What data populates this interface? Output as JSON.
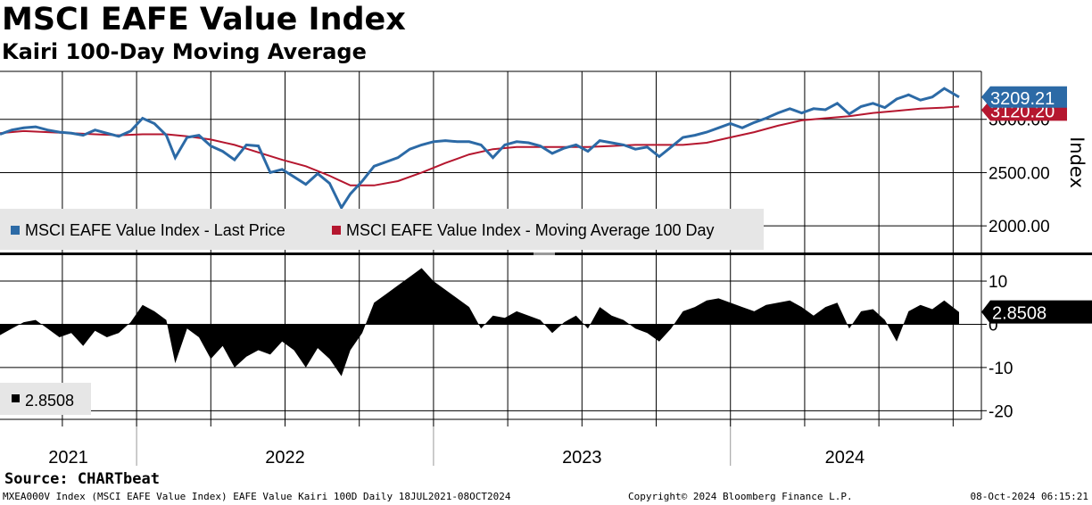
{
  "header": {
    "title": "MSCI EAFE Value Index",
    "subtitle": "Kairi 100-Day Moving Average"
  },
  "footer": {
    "source": "Source: CHARTbeat",
    "ticker_info": "MXEA000V Index (MSCI EAFE Value Index) EAFE Value Kairi 100D  Daily 18JUL2021-08OCT2024",
    "copyright": "Copyright© 2024 Bloomberg Finance L.P.",
    "timestamp": "08-Oct-2024 06:15:21"
  },
  "colors": {
    "price": "#2c6aa6",
    "moving_average": "#b5172f",
    "kairi": "#000000",
    "grid": "#000000",
    "legend_bg": "#e6e6e6"
  },
  "chart_data": [
    {
      "type": "line",
      "panel": "upper",
      "ylabel": "Index",
      "ylim": [
        1750,
        3450
      ],
      "yticks": [
        2000,
        2500,
        3000
      ],
      "ytick_labels": [
        "2000.00",
        "2500.00",
        "3000.00"
      ],
      "x_range": [
        "2021-07-18",
        "2024-10-08"
      ],
      "x_labels": [
        "2021",
        "2022",
        "2023",
        "2024"
      ],
      "legend": [
        "MSCI EAFE Value Index - Last Price",
        "MSCI EAFE Value Index - Moving Average 100 Day"
      ],
      "last_value_labels": [
        "3209.21",
        "3120.20"
      ],
      "series": [
        {
          "name": "MSCI EAFE Value Index - Last Price",
          "x": [
            2021.54,
            2021.58,
            2021.62,
            2021.66,
            2021.7,
            2021.74,
            2021.78,
            2021.82,
            2021.86,
            2021.9,
            2021.94,
            2021.98,
            2022.02,
            2022.06,
            2022.1,
            2022.13,
            2022.17,
            2022.21,
            2022.25,
            2022.29,
            2022.33,
            2022.37,
            2022.41,
            2022.45,
            2022.49,
            2022.53,
            2022.57,
            2022.61,
            2022.65,
            2022.69,
            2022.72,
            2022.76,
            2022.8,
            2022.84,
            2022.88,
            2022.92,
            2022.96,
            2023.0,
            2023.04,
            2023.08,
            2023.12,
            2023.16,
            2023.2,
            2023.24,
            2023.28,
            2023.32,
            2023.36,
            2023.4,
            2023.44,
            2023.48,
            2023.52,
            2023.56,
            2023.6,
            2023.64,
            2023.68,
            2023.72,
            2023.76,
            2023.8,
            2023.84,
            2023.88,
            2023.92,
            2023.96,
            2024.0,
            2024.04,
            2024.08,
            2024.12,
            2024.16,
            2024.2,
            2024.24,
            2024.28,
            2024.32,
            2024.36,
            2024.4,
            2024.44,
            2024.48,
            2024.52,
            2024.56,
            2024.6,
            2024.64,
            2024.68,
            2024.72,
            2024.77
          ],
          "values": [
            2860,
            2900,
            2920,
            2930,
            2900,
            2880,
            2870,
            2850,
            2900,
            2870,
            2840,
            2890,
            3010,
            2960,
            2850,
            2640,
            2830,
            2850,
            2750,
            2700,
            2620,
            2760,
            2750,
            2500,
            2530,
            2460,
            2390,
            2490,
            2400,
            2170,
            2300,
            2420,
            2560,
            2600,
            2640,
            2720,
            2760,
            2790,
            2800,
            2790,
            2790,
            2760,
            2640,
            2760,
            2790,
            2780,
            2750,
            2680,
            2730,
            2760,
            2700,
            2800,
            2780,
            2760,
            2720,
            2740,
            2650,
            2740,
            2830,
            2850,
            2880,
            2920,
            2960,
            2920,
            2970,
            3010,
            3060,
            3100,
            3060,
            3100,
            3090,
            3150,
            3050,
            3120,
            3150,
            3110,
            3190,
            3230,
            3180,
            3210,
            3290,
            3209.21
          ]
        },
        {
          "name": "MSCI EAFE Value Index - Moving Average 100 Day",
          "x": [
            2021.54,
            2021.62,
            2021.7,
            2021.78,
            2021.86,
            2021.94,
            2022.02,
            2022.1,
            2022.17,
            2022.25,
            2022.33,
            2022.41,
            2022.49,
            2022.57,
            2022.65,
            2022.72,
            2022.8,
            2022.88,
            2022.96,
            2023.04,
            2023.12,
            2023.2,
            2023.28,
            2023.36,
            2023.44,
            2023.52,
            2023.6,
            2023.68,
            2023.76,
            2023.84,
            2023.92,
            2024.0,
            2024.08,
            2024.16,
            2024.24,
            2024.32,
            2024.4,
            2024.48,
            2024.56,
            2024.64,
            2024.72,
            2024.77
          ],
          "values": [
            2870,
            2890,
            2880,
            2870,
            2860,
            2850,
            2860,
            2860,
            2840,
            2810,
            2760,
            2690,
            2620,
            2560,
            2470,
            2380,
            2380,
            2420,
            2500,
            2590,
            2670,
            2720,
            2740,
            2740,
            2740,
            2740,
            2750,
            2760,
            2760,
            2760,
            2780,
            2830,
            2880,
            2940,
            2990,
            3010,
            3030,
            3060,
            3080,
            3100,
            3110,
            3120.2
          ]
        }
      ]
    },
    {
      "type": "bar",
      "panel": "lower",
      "ylim": [
        -22,
        16
      ],
      "yticks": [
        -20,
        -10,
        0,
        10
      ],
      "ytick_labels": [
        "-20",
        "-10",
        "0",
        "10"
      ],
      "x_range": [
        "2021-07-18",
        "2024-10-08"
      ],
      "legend": [
        "2.8508"
      ],
      "last_value_label": "2.8508",
      "series": [
        {
          "name": "Kairi 100D",
          "x": [
            2021.54,
            2021.58,
            2021.62,
            2021.66,
            2021.7,
            2021.74,
            2021.78,
            2021.82,
            2021.86,
            2021.9,
            2021.94,
            2021.98,
            2022.02,
            2022.06,
            2022.1,
            2022.13,
            2022.17,
            2022.21,
            2022.25,
            2022.29,
            2022.33,
            2022.37,
            2022.41,
            2022.45,
            2022.49,
            2022.53,
            2022.57,
            2022.61,
            2022.65,
            2022.69,
            2022.72,
            2022.76,
            2022.8,
            2022.84,
            2022.88,
            2022.92,
            2022.96,
            2023.0,
            2023.04,
            2023.08,
            2023.12,
            2023.16,
            2023.2,
            2023.24,
            2023.28,
            2023.32,
            2023.36,
            2023.4,
            2023.44,
            2023.48,
            2023.52,
            2023.56,
            2023.6,
            2023.64,
            2023.68,
            2023.72,
            2023.76,
            2023.8,
            2023.84,
            2023.88,
            2023.92,
            2023.96,
            2024.0,
            2024.04,
            2024.08,
            2024.12,
            2024.16,
            2024.2,
            2024.24,
            2024.28,
            2024.32,
            2024.36,
            2024.4,
            2024.44,
            2024.48,
            2024.52,
            2024.56,
            2024.6,
            2024.64,
            2024.68,
            2024.72,
            2024.77
          ],
          "values": [
            -2.5,
            -1.0,
            0.5,
            1.0,
            -1.0,
            -3.0,
            -2.0,
            -5.0,
            -1.5,
            -3.0,
            -2.0,
            0.5,
            4.5,
            3.0,
            1.0,
            -9.0,
            -1.0,
            -3.0,
            -8.0,
            -5.0,
            -10.0,
            -7.5,
            -6.0,
            -7.0,
            -4.0,
            -6.0,
            -10.0,
            -5.5,
            -8.0,
            -12.0,
            -6.0,
            -2.0,
            5.0,
            7.0,
            9.0,
            11.0,
            13.0,
            10.0,
            8.0,
            6.0,
            4.0,
            -1.0,
            2.0,
            1.5,
            3.0,
            2.0,
            1.0,
            -2.0,
            0.5,
            2.0,
            -1.0,
            4.0,
            2.0,
            1.0,
            -1.0,
            -2.0,
            -4.0,
            -1.0,
            3.0,
            4.0,
            5.5,
            6.0,
            5.0,
            4.0,
            3.0,
            4.5,
            5.0,
            5.5,
            4.0,
            2.0,
            4.0,
            5.0,
            -1.0,
            3.0,
            3.5,
            1.0,
            -4.0,
            3.0,
            4.5,
            3.5,
            5.5,
            2.8508
          ]
        }
      ]
    }
  ]
}
